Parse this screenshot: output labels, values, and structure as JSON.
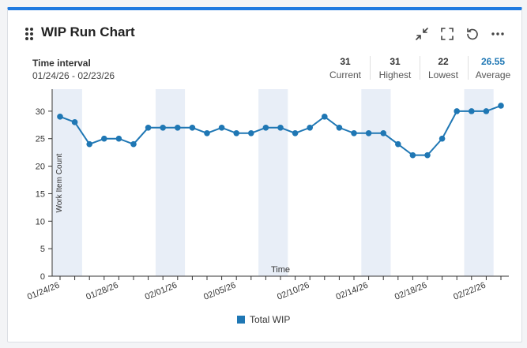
{
  "widget": {
    "title": "WIP Run Chart",
    "time_interval_label": "Time interval",
    "time_interval_value": "01/24/26 - 02/23/26",
    "stats": [
      {
        "value": "31",
        "label": "Current"
      },
      {
        "value": "31",
        "label": "Highest"
      },
      {
        "value": "22",
        "label": "Lowest"
      },
      {
        "value": "26.55",
        "label": "Average"
      }
    ],
    "accent": "#1f7ae0"
  },
  "chart_data": {
    "type": "line",
    "title": "WIP Run Chart",
    "xlabel": "Time",
    "ylabel": "Work Item Count",
    "ylim": [
      0,
      34
    ],
    "yticks": [
      0,
      5,
      10,
      15,
      20,
      25,
      30
    ],
    "dates": [
      "01/24/26",
      "01/25/26",
      "01/26/26",
      "01/27/26",
      "01/28/26",
      "01/29/26",
      "01/30/26",
      "01/31/26",
      "02/01/26",
      "02/02/26",
      "02/03/26",
      "02/04/26",
      "02/05/26",
      "02/06/26",
      "02/07/26",
      "02/08/26",
      "02/09/26",
      "02/10/26",
      "02/11/26",
      "02/12/26",
      "02/13/26",
      "02/14/26",
      "02/15/26",
      "02/16/26",
      "02/17/26",
      "02/18/26",
      "02/19/26",
      "02/20/26",
      "02/21/26",
      "02/22/26",
      "02/23/26"
    ],
    "xticklabels": [
      "01/24/26",
      "01/28/26",
      "02/01/26",
      "02/05/26",
      "02/10/26",
      "02/14/26",
      "02/18/26",
      "02/22/26"
    ],
    "xticklabel_indices": [
      0,
      4,
      8,
      12,
      17,
      21,
      25,
      29
    ],
    "weekend_bands": [
      [
        0,
        1
      ],
      [
        7,
        8
      ],
      [
        14,
        15
      ],
      [
        21,
        22
      ],
      [
        28,
        29
      ]
    ],
    "series": [
      {
        "name": "Total WIP",
        "color": "#1f77b4",
        "values": [
          29,
          28,
          24,
          25,
          25,
          24,
          27,
          27,
          27,
          27,
          26,
          27,
          26,
          26,
          27,
          27,
          26,
          27,
          29,
          27,
          26,
          26,
          26,
          24,
          22,
          22,
          25,
          30,
          30,
          30,
          31
        ]
      }
    ],
    "legend": "bottom-center"
  }
}
